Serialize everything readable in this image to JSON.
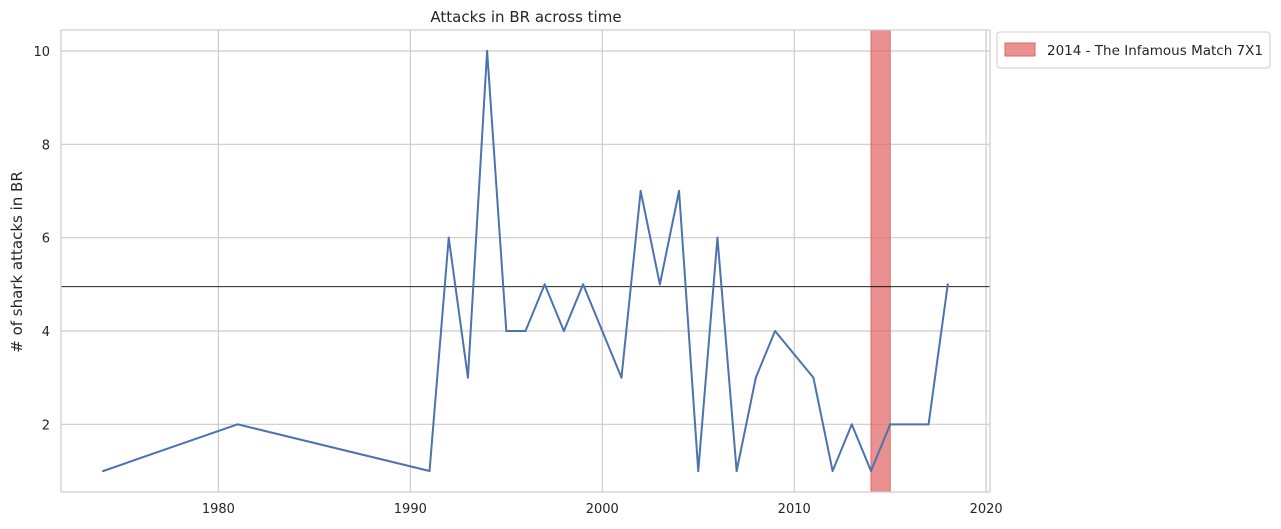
{
  "chart_data": {
    "type": "line",
    "title": "Attacks in BR across time",
    "xlabel": "",
    "ylabel": "# of shark attacks in BR",
    "xlim": [
      1971.8,
      2020.2
    ],
    "ylim": [
      0.55,
      10.45
    ],
    "xticks": [
      1980,
      1990,
      2000,
      2010,
      2020
    ],
    "yticks": [
      2,
      4,
      6,
      8,
      10
    ],
    "grid": true,
    "legend_position": "outside top-right",
    "series": [
      {
        "color": "#4c72b0",
        "x": [
          1974,
          1981,
          1991,
          1992,
          1993,
          1994,
          1995,
          1996,
          1997,
          1998,
          1999,
          2001,
          2002,
          2003,
          2004,
          2005,
          2006,
          2007,
          2008,
          2009,
          2011,
          2012,
          2013,
          2014,
          2015,
          2017,
          2018
        ],
        "y": [
          1,
          2,
          1,
          6,
          3,
          10,
          4,
          4,
          5,
          4,
          5,
          3,
          7,
          5,
          7,
          1,
          6,
          1,
          3,
          4,
          3,
          1,
          2,
          1,
          2,
          2,
          5
        ]
      }
    ],
    "hline": {
      "y": 4.95,
      "color": "#000000"
    },
    "highlight": {
      "x_start": 2014,
      "x_end": 2015,
      "color": "#e06666",
      "label": "2014 - The Infamous Match 7X1"
    }
  }
}
